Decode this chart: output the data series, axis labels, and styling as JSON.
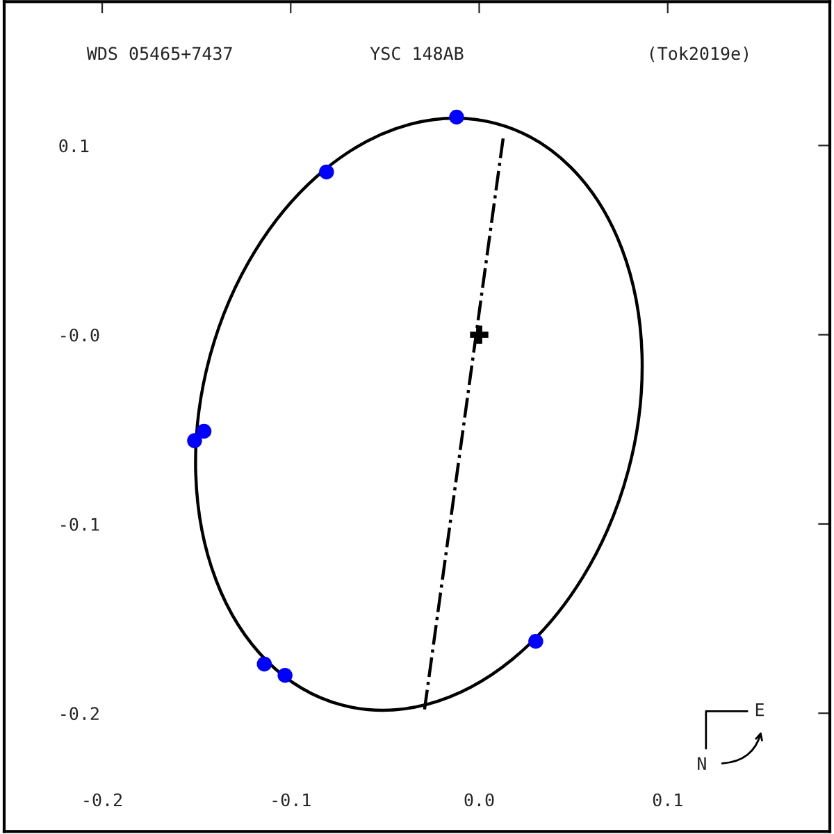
{
  "chart_data": {
    "type": "line",
    "title": "YSC 148AB",
    "annotations": [
      "WDS 05465+7437",
      "(Tok2019e)",
      "N",
      "E"
    ],
    "xlim": [
      -0.252,
      0.186
    ],
    "ylim": [
      -0.2625,
      0.176
    ],
    "xticks": [
      -0.2,
      -0.1,
      {
        "value": 0,
        "label": "0.0"
      },
      0.1
    ],
    "yticks": [
      -0.2,
      -0.1,
      {
        "value": 0,
        "label": "-0.0"
      },
      0.1
    ],
    "grid": false,
    "series": [
      {
        "color": "#000000",
        "line_style": "dashdot",
        "marker": "none",
        "x": [
          -0.029,
          0.013
        ],
        "values": [
          -0.198,
          0.106
        ]
      },
      {
        "type": "scatter",
        "color": "#0000ff",
        "marker": "circle",
        "x": [
          -0.012,
          -0.081,
          -0.146,
          -0.151,
          -0.114,
          -0.103,
          0.03
        ],
        "values": [
          0.115,
          0.086,
          -0.051,
          -0.056,
          -0.174,
          -0.18,
          -0.162
        ]
      },
      {
        "type": "scatter",
        "color": "#000000",
        "marker": "cross",
        "x": [
          0
        ],
        "values": [
          0
        ]
      }
    ]
  }
}
